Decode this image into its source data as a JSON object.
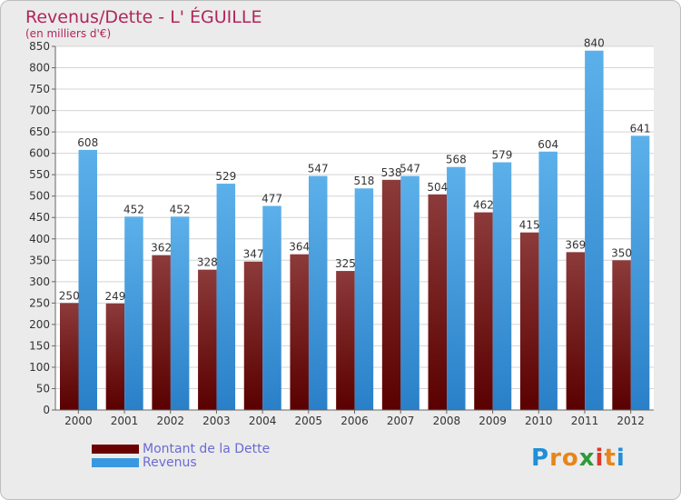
{
  "title": "Revenus/Dette - L' ÉGUILLE",
  "subtitle": "(en milliers d'€)",
  "brand": {
    "letters": [
      "P",
      "r",
      "o",
      "x",
      "i",
      "t",
      "i"
    ],
    "colors": [
      "#1f8fd6",
      "#e8851a",
      "#e8851a",
      "#2f9a3a",
      "#d93a2a",
      "#e8851a",
      "#1f8fd6"
    ]
  },
  "legend": [
    {
      "label": "Montant de la Dette",
      "color": "#6b0000"
    },
    {
      "label": "Revenus",
      "color": "#3a98e0"
    }
  ],
  "chart_data": {
    "type": "bar",
    "title": "Revenus/Dette - L' ÉGUILLE",
    "ylabel": "(en milliers d'€)",
    "categories": [
      "2000",
      "2001",
      "2002",
      "2003",
      "2004",
      "2005",
      "2006",
      "2007",
      "2008",
      "2009",
      "2010",
      "2011",
      "2012"
    ],
    "series": [
      {
        "name": "Montant de la Dette",
        "values": [
          250,
          249,
          362,
          328,
          347,
          364,
          325,
          538,
          504,
          462,
          415,
          369,
          350
        ]
      },
      {
        "name": "Revenus",
        "values": [
          608,
          452,
          452,
          529,
          477,
          547,
          518,
          547,
          568,
          579,
          604,
          840,
          641
        ]
      }
    ],
    "ylim": [
      0,
      850
    ],
    "yticks": [
      0,
      50,
      100,
      150,
      200,
      250,
      300,
      350,
      400,
      450,
      500,
      550,
      600,
      650,
      700,
      750,
      800,
      850
    ],
    "grid": true,
    "legend_position": "bottom-left"
  }
}
